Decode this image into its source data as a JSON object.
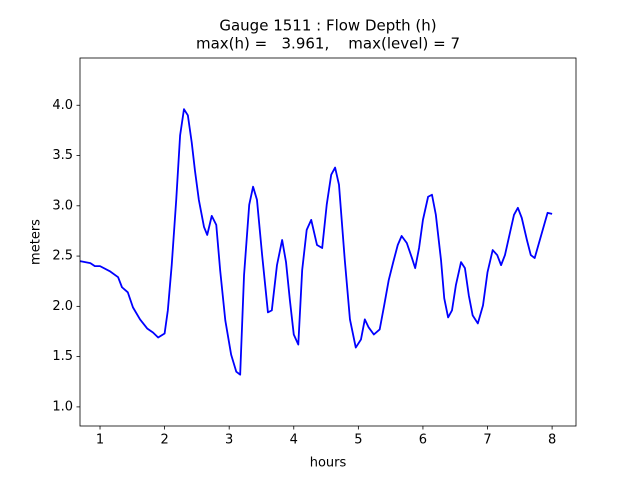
{
  "chart_data": {
    "type": "line",
    "title": "Gauge 1511 : Flow Depth (h)",
    "subtitle": "max(h) =   3.961,    max(level) = 7",
    "x_label": "hours",
    "y_label": "meters",
    "color": "#0000ff",
    "x": [
      0.69,
      0.85,
      0.92,
      1.0,
      1.15,
      1.28,
      1.34,
      1.43,
      1.51,
      1.62,
      1.73,
      1.82,
      1.9,
      2.0,
      2.05,
      2.11,
      2.18,
      2.24,
      2.3,
      2.36,
      2.42,
      2.47,
      2.53,
      2.61,
      2.66,
      2.73,
      2.8,
      2.86,
      2.94,
      3.03,
      3.11,
      3.17,
      3.23,
      3.31,
      3.37,
      3.43,
      3.51,
      3.6,
      3.66,
      3.74,
      3.82,
      3.88,
      3.94,
      4.0,
      4.07,
      4.13,
      4.2,
      4.27,
      4.36,
      4.44,
      4.51,
      4.58,
      4.64,
      4.7,
      4.79,
      4.87,
      4.96,
      5.04,
      5.1,
      5.16,
      5.24,
      5.33,
      5.4,
      5.47,
      5.54,
      5.61,
      5.67,
      5.75,
      5.83,
      5.88,
      5.94,
      6.0,
      6.08,
      6.14,
      6.2,
      6.28,
      6.33,
      6.39,
      6.45,
      6.51,
      6.59,
      6.65,
      6.71,
      6.77,
      6.85,
      6.93,
      7.0,
      7.08,
      7.15,
      7.21,
      7.27,
      7.35,
      7.41,
      7.47,
      7.53,
      7.61,
      7.67,
      7.73,
      7.81,
      7.89,
      7.93,
      8.0
    ],
    "values": [
      2.45,
      2.43,
      2.4,
      2.4,
      2.35,
      2.29,
      2.19,
      2.14,
      1.99,
      1.87,
      1.78,
      1.74,
      1.69,
      1.73,
      1.96,
      2.41,
      3.06,
      3.7,
      3.961,
      3.9,
      3.63,
      3.35,
      3.06,
      2.79,
      2.71,
      2.9,
      2.81,
      2.36,
      1.86,
      1.52,
      1.35,
      1.32,
      2.31,
      3.01,
      3.19,
      3.06,
      2.51,
      1.94,
      1.96,
      2.41,
      2.66,
      2.44,
      2.06,
      1.72,
      1.62,
      2.36,
      2.76,
      2.86,
      2.61,
      2.58,
      3.01,
      3.31,
      3.38,
      3.21,
      2.46,
      1.87,
      1.59,
      1.67,
      1.87,
      1.79,
      1.72,
      1.77,
      2.01,
      2.26,
      2.44,
      2.61,
      2.7,
      2.63,
      2.48,
      2.38,
      2.58,
      2.86,
      3.09,
      3.11,
      2.91,
      2.46,
      2.08,
      1.89,
      1.96,
      2.21,
      2.44,
      2.38,
      2.11,
      1.91,
      1.83,
      2.01,
      2.34,
      2.56,
      2.51,
      2.41,
      2.51,
      2.74,
      2.91,
      2.98,
      2.88,
      2.66,
      2.51,
      2.48,
      2.66,
      2.84,
      2.93,
      2.92
    ],
    "xlim": [
      0.69,
      8.37
    ],
    "ylim": [
      0.81,
      4.47
    ],
    "xticks": [
      1,
      2,
      3,
      4,
      5,
      6,
      7,
      8
    ],
    "yticks": [
      {
        "value": 1,
        "label": "1.0"
      },
      1.5,
      {
        "value": 2,
        "label": "2.0"
      },
      2.5,
      {
        "value": 3,
        "label": "3.0"
      },
      3.5,
      {
        "value": 4,
        "label": "4.0"
      }
    ],
    "grid": false
  }
}
